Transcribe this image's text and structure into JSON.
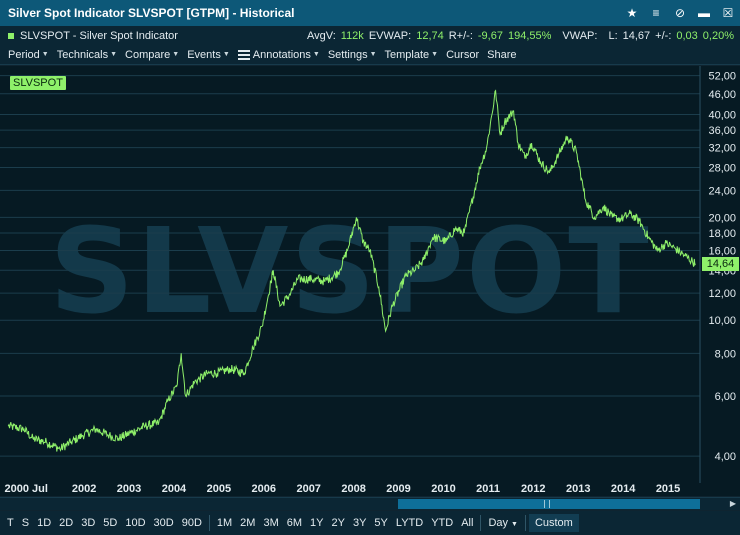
{
  "window": {
    "title": "Silver Spot Indicator SLVSPOT [GTPM] - Historical",
    "controls": [
      "star-icon",
      "menu-icon",
      "unlink-icon",
      "minimize-icon",
      "close-icon"
    ]
  },
  "info": {
    "instrument": "SLVSPOT - Silver Spot Indicator",
    "avgv_label": "AvgV:",
    "avgv_value": "112k",
    "evwap_label": "EVWAP:",
    "evwap_value": "12,74",
    "rplus_label": "R+/-:",
    "rplus_value": "-9,67",
    "rplus_pct": "194,55%",
    "vwap_label": "VWAP:",
    "last_label": "L:",
    "last_value": "14,67",
    "chg_label": "+/-:",
    "chg_value": "0,03",
    "chg_pct": "0,20%"
  },
  "menu": {
    "period": "Period",
    "technicals": "Technicals",
    "compare": "Compare",
    "events": "Events",
    "annotations": "Annotations",
    "settings": "Settings",
    "template": "Template",
    "cursor": "Cursor",
    "share": "Share"
  },
  "chart": {
    "watermark": "SLVSPOT",
    "symbol_badge": "SLVSPOT",
    "last_price_label": "14,64",
    "colors": {
      "line": "#8ff06a",
      "background": "#061a23",
      "grid": "#1b3d4c",
      "watermark": "#13394a"
    }
  },
  "period_bar": {
    "buttons": [
      "T",
      "S",
      "1D",
      "2D",
      "3D",
      "5D",
      "10D",
      "30D",
      "90D",
      "1M",
      "2M",
      "3M",
      "6M",
      "1Y",
      "2Y",
      "3Y",
      "5Y",
      "LYTD",
      "YTD",
      "All"
    ],
    "interval": "Day",
    "custom": "Custom"
  },
  "chart_data": {
    "type": "line",
    "title": "",
    "xlabel": "",
    "ylabel": "",
    "yscale": "log",
    "ylim": [
      3.5,
      54
    ],
    "xlim": [
      2000.4,
      2015.85
    ],
    "x_ticks": [
      {
        "x": 2000.5,
        "label": "2000 Jul"
      },
      {
        "x": 2002,
        "label": "2002"
      },
      {
        "x": 2003,
        "label": "2003"
      },
      {
        "x": 2004,
        "label": "2004"
      },
      {
        "x": 2005,
        "label": "2005"
      },
      {
        "x": 2006,
        "label": "2006"
      },
      {
        "x": 2007,
        "label": "2007"
      },
      {
        "x": 2008,
        "label": "2008"
      },
      {
        "x": 2009,
        "label": "2009"
      },
      {
        "x": 2010,
        "label": "2010"
      },
      {
        "x": 2011,
        "label": "2011"
      },
      {
        "x": 2012,
        "label": "2012"
      },
      {
        "x": 2013,
        "label": "2013"
      },
      {
        "x": 2014,
        "label": "2014"
      },
      {
        "x": 2015,
        "label": "2015"
      }
    ],
    "y_ticks": [
      {
        "v": 52,
        "label": "52,00"
      },
      {
        "v": 46,
        "label": "46,00"
      },
      {
        "v": 40,
        "label": "40,00"
      },
      {
        "v": 36,
        "label": "36,00"
      },
      {
        "v": 32,
        "label": "32,00"
      },
      {
        "v": 28,
        "label": "28,00"
      },
      {
        "v": 24,
        "label": "24,00"
      },
      {
        "v": 20,
        "label": "20,00"
      },
      {
        "v": 18,
        "label": "18,00"
      },
      {
        "v": 16,
        "label": "16,00"
      },
      {
        "v": 14,
        "label": "14,00"
      },
      {
        "v": 12,
        "label": "12,00"
      },
      {
        "v": 10,
        "label": "10,00"
      },
      {
        "v": 8,
        "label": "8,00"
      },
      {
        "v": 6,
        "label": "6,00"
      },
      {
        "v": 4,
        "label": "4,00"
      }
    ],
    "grid": true,
    "series": [
      {
        "x": [
          2000.45,
          2000.8,
          2001.0,
          2001.3,
          2001.6,
          2001.85,
          2002.1,
          2002.4,
          2002.7,
          2002.9,
          2003.2,
          2003.5,
          2003.8,
          2004.0,
          2004.2,
          2004.3,
          2004.4,
          2004.6,
          2004.9,
          2005.1,
          2005.4,
          2005.7,
          2005.9,
          2006.1,
          2006.3,
          2006.35,
          2006.5,
          2006.7,
          2006.9,
          2007.2,
          2007.5,
          2007.8,
          2008.0,
          2008.2,
          2008.35,
          2008.5,
          2008.7,
          2008.85,
          2009.0,
          2009.3,
          2009.5,
          2009.7,
          2009.9,
          2010.2,
          2010.4,
          2010.6,
          2010.8,
          2010.95,
          2011.1,
          2011.3,
          2011.4,
          2011.5,
          2011.7,
          2011.8,
          2011.95,
          2012.1,
          2012.3,
          2012.5,
          2012.7,
          2012.9,
          2013.1,
          2013.3,
          2013.5,
          2013.7,
          2013.9,
          2014.1,
          2014.3,
          2014.5,
          2014.7,
          2014.9,
          2015.1,
          2015.3,
          2015.5,
          2015.75
        ],
        "values": [
          4.9,
          4.8,
          4.5,
          4.4,
          4.2,
          4.4,
          4.6,
          4.8,
          4.6,
          4.5,
          4.7,
          4.9,
          5.0,
          5.8,
          6.4,
          8.0,
          6.0,
          6.6,
          7.0,
          7.0,
          7.2,
          7.0,
          8.3,
          9.6,
          13.0,
          14.0,
          11.0,
          11.8,
          13.2,
          13.2,
          13.0,
          13.8,
          16.0,
          20.0,
          17.0,
          16.0,
          12.5,
          9.3,
          11.0,
          13.5,
          14.0,
          15.0,
          17.5,
          17.0,
          18.5,
          18.0,
          23.0,
          28.0,
          32.0,
          47.0,
          35.0,
          38.0,
          41.0,
          33.0,
          30.0,
          33.0,
          29.0,
          27.0,
          30.5,
          34.5,
          31.0,
          22.5,
          20.0,
          21.5,
          20.0,
          19.8,
          20.5,
          19.5,
          17.5,
          16.0,
          16.8,
          16.2,
          15.5,
          14.64
        ]
      }
    ]
  }
}
